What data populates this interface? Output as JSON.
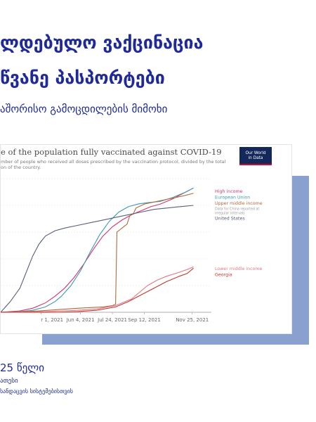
{
  "slide": {
    "title_line1": "ლდებულო ვაქცინაცია",
    "title_line2": "წვანე პასპორტები",
    "subtitle": "აშორისო გამოცდილების მიმოხი",
    "footer_year": "25 წელი",
    "footer_line2": "ათესი",
    "footer_line3": "სანდაცვის სისტემებისთვის"
  },
  "colors": {
    "title": "#1f2a9a",
    "accent_block": "#8aa0cf"
  },
  "logo": {
    "line1": "Our World",
    "line2": "in Data"
  },
  "chart_data": {
    "type": "line",
    "title": "e of the population fully vaccinated against COVID-19",
    "subtitle_line1": "mber of people who received all doses prescribed by the vaccination protocol, divided by the total",
    "subtitle_line2": "on of the country.",
    "x_tick_labels": [
      "r 1, 2021",
      "Jun 4, 2021",
      "Jul 24, 2021",
      "Sep 12, 2021",
      "Nov 25, 2021"
    ],
    "x_tick_positions": [
      33,
      95,
      145,
      195,
      270
    ],
    "x_range": [
      -30,
      300
    ],
    "y_range": [
      0,
      100
    ],
    "annotation_china": "Data for China reported at irregular intervals",
    "series": [
      {
        "name": "High income",
        "color": "#d6336c",
        "points": [
          [
            -30,
            0
          ],
          [
            0,
            1
          ],
          [
            20,
            3
          ],
          [
            40,
            7
          ],
          [
            55,
            12
          ],
          [
            70,
            18
          ],
          [
            85,
            26
          ],
          [
            100,
            36
          ],
          [
            115,
            47
          ],
          [
            130,
            57
          ],
          [
            145,
            64
          ],
          [
            160,
            69
          ],
          [
            175,
            73
          ],
          [
            190,
            76
          ],
          [
            205,
            79
          ],
          [
            220,
            81
          ],
          [
            240,
            85
          ],
          [
            260,
            90
          ],
          [
            272,
            93
          ]
        ]
      },
      {
        "name": "European Union",
        "color": "#3b9ab2",
        "points": [
          [
            -30,
            0
          ],
          [
            0,
            0.5
          ],
          [
            20,
            1.5
          ],
          [
            40,
            4
          ],
          [
            55,
            8
          ],
          [
            65,
            12
          ],
          [
            80,
            20
          ],
          [
            95,
            31
          ],
          [
            110,
            45
          ],
          [
            125,
            58
          ],
          [
            140,
            68
          ],
          [
            155,
            75
          ],
          [
            170,
            79
          ],
          [
            185,
            81
          ],
          [
            200,
            82
          ],
          [
            220,
            83
          ],
          [
            240,
            86
          ],
          [
            260,
            90
          ],
          [
            272,
            93
          ]
        ]
      },
      {
        "name": "Upper middle income",
        "color": "#b06a3b",
        "points": [
          [
            -30,
            0
          ],
          [
            0,
            0.3
          ],
          [
            30,
            1
          ],
          [
            60,
            2
          ],
          [
            90,
            3
          ],
          [
            110,
            3.5
          ],
          [
            130,
            4
          ],
          [
            145,
            5
          ],
          [
            150,
            6
          ],
          [
            152,
            60
          ],
          [
            160,
            63
          ],
          [
            168,
            66
          ],
          [
            172,
            72
          ],
          [
            178,
            74
          ],
          [
            182,
            78
          ],
          [
            195,
            81
          ],
          [
            215,
            83
          ],
          [
            235,
            85
          ],
          [
            255,
            87
          ],
          [
            272,
            89
          ]
        ]
      },
      {
        "name": "United States",
        "color": "#57607a",
        "points": [
          [
            -30,
            0
          ],
          [
            -15,
            8
          ],
          [
            0,
            18
          ],
          [
            10,
            30
          ],
          [
            20,
            42
          ],
          [
            30,
            51
          ],
          [
            40,
            57
          ],
          [
            55,
            61
          ],
          [
            70,
            63
          ],
          [
            90,
            65
          ],
          [
            110,
            67
          ],
          [
            130,
            69
          ],
          [
            150,
            71
          ],
          [
            170,
            73
          ],
          [
            190,
            75
          ],
          [
            210,
            77
          ],
          [
            230,
            78
          ],
          [
            250,
            79
          ],
          [
            272,
            80
          ]
        ]
      },
      {
        "name": "Lower middle income",
        "color": "#e07a8a",
        "points": [
          [
            -30,
            0
          ],
          [
            40,
            0.5
          ],
          [
            90,
            1.5
          ],
          [
            120,
            2.5
          ],
          [
            150,
            5
          ],
          [
            175,
            10
          ],
          [
            200,
            20
          ],
          [
            215,
            24
          ],
          [
            230,
            27
          ],
          [
            250,
            30
          ],
          [
            262,
            32
          ],
          [
            272,
            34
          ]
        ]
      },
      {
        "name": "Georgia",
        "color": "#c0392b",
        "points": [
          [
            -30,
            0
          ],
          [
            60,
            0
          ],
          [
            90,
            0.5
          ],
          [
            120,
            1.5
          ],
          [
            150,
            4
          ],
          [
            170,
            8
          ],
          [
            190,
            13
          ],
          [
            210,
            18
          ],
          [
            230,
            23
          ],
          [
            250,
            27
          ],
          [
            262,
            29
          ],
          [
            272,
            33
          ]
        ]
      }
    ],
    "label_order_top": [
      "High income",
      "European Union",
      "Upper middle income",
      "annotation",
      "United States"
    ],
    "label_order_bottom": [
      "Lower middle income",
      "Georgia"
    ]
  }
}
